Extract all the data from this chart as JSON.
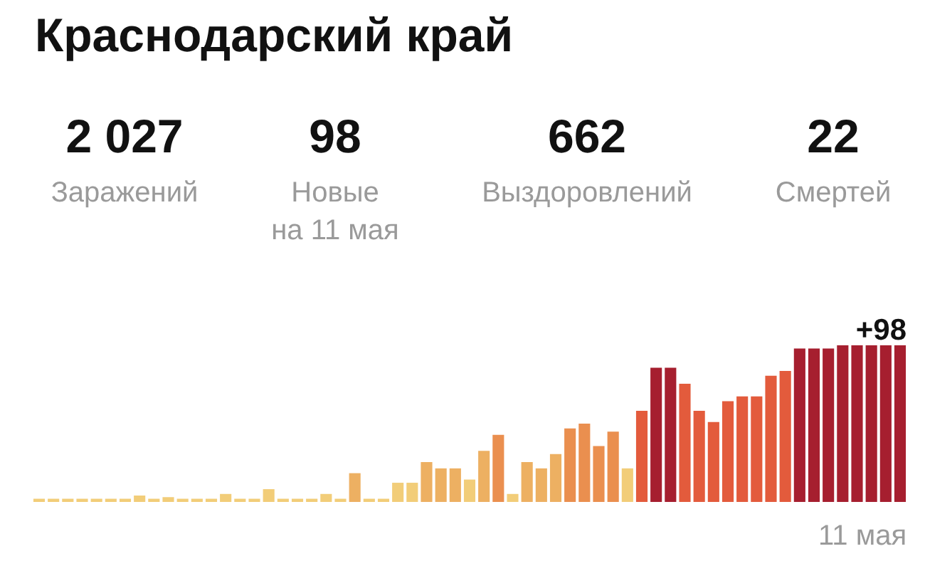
{
  "chart_data": {
    "type": "bar",
    "tick_labels": false,
    "title": "Краснодарский край",
    "annotations": [
      "2 027",
      "Заражений",
      "98",
      "Новые\nна 11 мая",
      "662",
      "Выздоровлений",
      "22",
      "Смертей",
      "11 мая"
    ],
    "value_labels": [
      null,
      null,
      null,
      null,
      null,
      null,
      null,
      null,
      null,
      null,
      null,
      null,
      null,
      null,
      null,
      null,
      null,
      null,
      null,
      null,
      null,
      null,
      null,
      null,
      null,
      null,
      null,
      null,
      null,
      null,
      null,
      null,
      null,
      null,
      null,
      null,
      null,
      null,
      null,
      null,
      null,
      null,
      null,
      null,
      null,
      null,
      null,
      null,
      null,
      null,
      null,
      null,
      null,
      null,
      null,
      null,
      null,
      null,
      null,
      null,
      "+98"
    ],
    "categories": [
      null,
      null,
      null,
      null,
      null,
      null,
      null,
      null,
      null,
      null,
      null,
      null,
      null,
      null,
      null,
      null,
      null,
      null,
      null,
      null,
      null,
      null,
      null,
      null,
      null,
      null,
      null,
      null,
      null,
      null,
      null,
      null,
      null,
      null,
      null,
      null,
      null,
      null,
      null,
      null,
      null,
      null,
      null,
      null,
      null,
      null,
      null,
      null,
      null,
      null,
      null,
      null,
      null,
      null,
      null,
      null,
      null,
      null,
      null,
      null,
      null
    ],
    "values": [
      2,
      2,
      2,
      2,
      2,
      2,
      2,
      4,
      2,
      3,
      2,
      2,
      2,
      5,
      2,
      2,
      8,
      2,
      2,
      2,
      5,
      2,
      18,
      2,
      2,
      12,
      12,
      25,
      21,
      21,
      14,
      32,
      42,
      5,
      25,
      21,
      30,
      46,
      49,
      35,
      44,
      21,
      57,
      84,
      84,
      74,
      57,
      50,
      63,
      66,
      66,
      79,
      82,
      96,
      96,
      96,
      98,
      98,
      98,
      98,
      98
    ],
    "colors": [
      "#f2cd79",
      "#f2cd79",
      "#f2cd79",
      "#f2cd79",
      "#f2cd79",
      "#f2cd79",
      "#f2cd79",
      "#f2cd79",
      "#f2cd79",
      "#f2cd79",
      "#f2cd79",
      "#f2cd79",
      "#f2cd79",
      "#f2cd79",
      "#f2cd79",
      "#f2cd79",
      "#f2cd79",
      "#f2cd79",
      "#f2cd79",
      "#f2cd79",
      "#f2cd79",
      "#f2cd79",
      "#edb062",
      "#f2cd79",
      "#f2cd79",
      "#f2cd79",
      "#f2cd79",
      "#edb062",
      "#edb062",
      "#edb062",
      "#f2cd79",
      "#edb062",
      "#ea8f4f",
      "#f2cd79",
      "#edb062",
      "#edb062",
      "#edb062",
      "#ea8f4f",
      "#ea8f4f",
      "#ea8f4f",
      "#ea8f4f",
      "#f2cd79",
      "#e35b3c",
      "#a61f2f",
      "#a61f2f",
      "#e35b3c",
      "#e35b3c",
      "#e35b3c",
      "#e35b3c",
      "#e35b3c",
      "#e35b3c",
      "#e35b3c",
      "#e35b3c",
      "#a61f2f",
      "#a61f2f",
      "#a61f2f",
      "#a61f2f",
      "#a61f2f",
      "#a61f2f",
      "#a61f2f",
      "#a61f2f"
    ]
  }
}
